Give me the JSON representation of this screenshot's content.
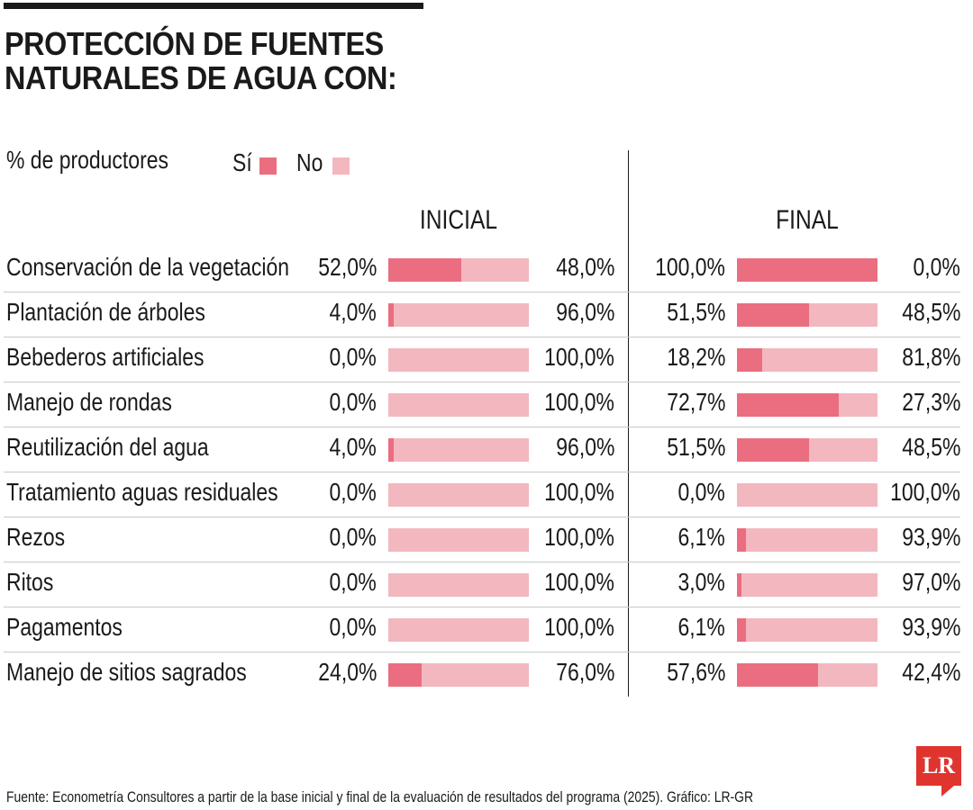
{
  "header": {
    "title_line1": "PROTECCIÓN DE FUENTES",
    "title_line2": "NATURALES DE AGUA CON:"
  },
  "legend": {
    "ylabel": "% de productores",
    "si_label": "Sí",
    "no_label": "No"
  },
  "colors": {
    "si": "#ea6e80",
    "no": "#f3b8bf"
  },
  "columns": {
    "inicial": "INICIAL",
    "final": "FINAL"
  },
  "chart_data": {
    "type": "bar",
    "categories": [
      "Conservación de la vegetación",
      "Plantación de árboles",
      "Bebederos artificiales",
      "Manejo de rondas",
      "Reutilización del agua",
      "Tratamiento aguas residuales",
      "Rezos",
      "Ritos",
      "Pagamentos",
      "Manejo de sitios sagrados"
    ],
    "inicial": {
      "si": [
        52.0,
        4.0,
        0.0,
        0.0,
        4.0,
        0.0,
        0.0,
        0.0,
        0.0,
        24.0
      ],
      "no": [
        48.0,
        96.0,
        100.0,
        100.0,
        96.0,
        100.0,
        100.0,
        100.0,
        100.0,
        76.0
      ],
      "si_labels": [
        "52,0%",
        "4,0%",
        "0,0%",
        "0,0%",
        "4,0%",
        "0,0%",
        "0,0%",
        "0,0%",
        "0,0%",
        "24,0%"
      ],
      "no_labels": [
        "48,0%",
        "96,0%",
        "100,0%",
        "100,0%",
        "96,0%",
        "100,0%",
        "100,0%",
        "100,0%",
        "100,0%",
        "76,0%"
      ]
    },
    "final": {
      "si": [
        100.0,
        51.5,
        18.2,
        72.7,
        51.5,
        0.0,
        6.1,
        3.0,
        6.1,
        57.6
      ],
      "no": [
        0.0,
        48.5,
        81.8,
        27.3,
        48.5,
        100.0,
        93.9,
        97.0,
        93.9,
        42.4
      ],
      "si_labels": [
        "100,0%",
        "51,5%",
        "18,2%",
        "72,7%",
        "51,5%",
        "0,0%",
        "6,1%",
        "3,0%",
        "6,1%",
        "57,6%"
      ],
      "no_labels": [
        "0,0%",
        "48,5%",
        "81,8%",
        "27,3%",
        "48,5%",
        "100,0%",
        "93,9%",
        "97,0%",
        "93,9%",
        "42,4%"
      ]
    },
    "xlim": [
      0,
      100
    ]
  },
  "footer": {
    "source": "Fuente: Econometría Consultores a partir de la base inicial y final de la evaluación de resultados del programa (2025). Gráfico: LR-GR",
    "logo_text": "LR"
  }
}
